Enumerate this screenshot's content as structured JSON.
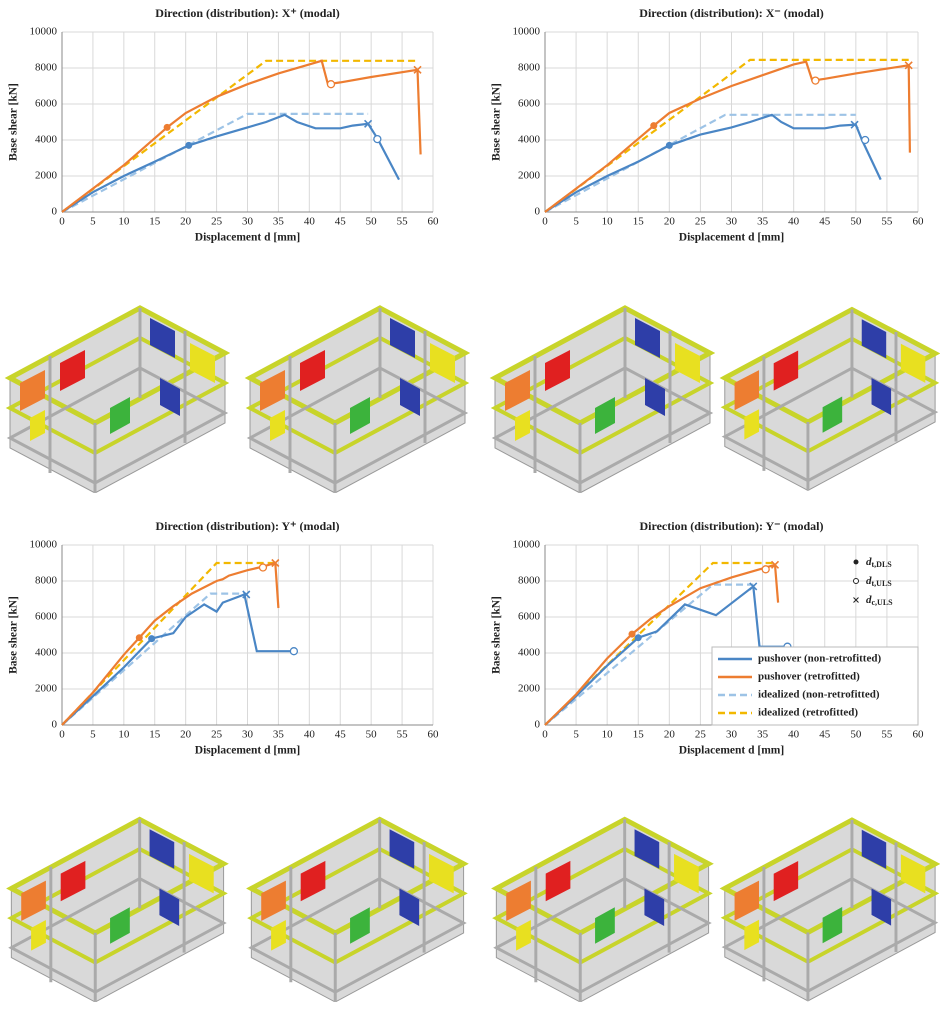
{
  "chart_data": [
    {
      "type": "line",
      "title": "Direction (distribution):  X⁺ (modal)",
      "x_label": "Displacement d [mm]",
      "y_label": "Base shear [kN]",
      "xlim": [
        0,
        60
      ],
      "xticks": [
        0,
        5,
        10,
        15,
        20,
        25,
        30,
        35,
        40,
        45,
        50,
        55,
        60
      ],
      "ylim": [
        0,
        10000
      ],
      "yticks": [
        0,
        2000,
        4000,
        6000,
        8000,
        10000
      ],
      "grid": true,
      "legend": false,
      "series": [
        {
          "name": "pushover (non-retrofitted)",
          "color": "#4a86c5",
          "dash": false,
          "x": [
            0,
            5,
            10,
            15,
            20.5,
            25,
            30,
            33,
            36,
            38,
            41,
            45,
            47,
            49.5,
            51,
            54.5
          ],
          "values": [
            0,
            1100,
            2000,
            2800,
            3700,
            4200,
            4700,
            5000,
            5400,
            5000,
            4650,
            4650,
            4800,
            4900,
            4100,
            1800
          ],
          "dls": [
            20.5,
            3700
          ],
          "uls": [
            51,
            4050
          ],
          "culs": [
            49.5,
            4900
          ]
        },
        {
          "name": "pushover (retrofitted)",
          "color": "#ed7d31",
          "dash": false,
          "x": [
            0,
            5,
            10,
            17,
            20,
            25,
            30,
            35,
            40,
            42,
            43,
            45,
            50,
            57.5,
            58
          ],
          "values": [
            0,
            1300,
            2600,
            4700,
            5500,
            6400,
            7100,
            7700,
            8200,
            8400,
            7100,
            7200,
            7500,
            7900,
            3200
          ],
          "dls": [
            17,
            4700
          ],
          "uls": [
            43.5,
            7100
          ],
          "culs": [
            57.5,
            7900
          ]
        },
        {
          "name": "idealized (non-retrofitted)",
          "color": "#9dc3e6",
          "dash": true,
          "x": [
            0,
            30,
            49.5
          ],
          "values": [
            0,
            5450,
            5450
          ]
        },
        {
          "name": "idealized (retrofitted)",
          "color": "#f2b800",
          "dash": true,
          "x": [
            0,
            33,
            57.5
          ],
          "values": [
            0,
            8400,
            8400
          ]
        }
      ]
    },
    {
      "type": "line",
      "title": "Direction (distribution):  X⁻ (modal)",
      "x_label": "Displacement d [mm]",
      "y_label": "Base shear [kN]",
      "xlim": [
        0,
        60
      ],
      "xticks": [
        0,
        5,
        10,
        15,
        20,
        25,
        30,
        35,
        40,
        45,
        50,
        55,
        60
      ],
      "ylim": [
        0,
        10000
      ],
      "yticks": [
        0,
        2000,
        4000,
        6000,
        8000,
        10000
      ],
      "grid": true,
      "legend": false,
      "series": [
        {
          "name": "pushover (non-retrofitted)",
          "color": "#4a86c5",
          "dash": false,
          "x": [
            0,
            5,
            10,
            15,
            20,
            25,
            30,
            33,
            36.5,
            38,
            40,
            45,
            47.5,
            50,
            51,
            54
          ],
          "values": [
            0,
            1100,
            2000,
            2800,
            3700,
            4300,
            4700,
            5000,
            5400,
            5000,
            4650,
            4650,
            4800,
            4850,
            4000,
            1800
          ],
          "dls": [
            20,
            3700
          ],
          "uls": [
            51.5,
            4000
          ],
          "culs": [
            49.8,
            4850
          ]
        },
        {
          "name": "pushover (retrofitted)",
          "color": "#ed7d31",
          "dash": false,
          "x": [
            0,
            5,
            10,
            17.5,
            20,
            25,
            30,
            35,
            40,
            42,
            43,
            45,
            50,
            58.5,
            58.7
          ],
          "values": [
            0,
            1300,
            2600,
            4800,
            5500,
            6300,
            7000,
            7600,
            8200,
            8350,
            7300,
            7400,
            7700,
            8150,
            3300
          ],
          "dls": [
            17.5,
            4800
          ],
          "uls": [
            43.5,
            7300
          ],
          "culs": [
            58.5,
            8150
          ]
        },
        {
          "name": "idealized (non-retrofitted)",
          "color": "#9dc3e6",
          "dash": true,
          "x": [
            0,
            29,
            50
          ],
          "values": [
            0,
            5400,
            5400
          ]
        },
        {
          "name": "idealized (retrofitted)",
          "color": "#f2b800",
          "dash": true,
          "x": [
            0,
            33,
            58.5
          ],
          "values": [
            0,
            8450,
            8450
          ]
        }
      ]
    },
    {
      "type": "line",
      "title": "Direction (distribution):  Y⁺ (modal)",
      "x_label": "Displacement d [mm]",
      "y_label": "Base shear [kN]",
      "xlim": [
        0,
        60
      ],
      "xticks": [
        0,
        5,
        10,
        15,
        20,
        25,
        30,
        35,
        40,
        45,
        50,
        55,
        60
      ],
      "ylim": [
        0,
        10000
      ],
      "yticks": [
        0,
        2000,
        4000,
        6000,
        8000,
        10000
      ],
      "grid": true,
      "legend": false,
      "series": [
        {
          "name": "pushover (non-retrofitted)",
          "color": "#4a86c5",
          "dash": false,
          "x": [
            0,
            5,
            10,
            14.5,
            18,
            20,
            23,
            25,
            26,
            29.5,
            31.5,
            37.5
          ],
          "values": [
            0,
            1600,
            3200,
            4800,
            5100,
            6000,
            6700,
            6300,
            6800,
            7250,
            4100,
            4100
          ],
          "dls": [
            14.5,
            4800
          ],
          "uls": [
            37.5,
            4100
          ],
          "culs": [
            29.8,
            7250
          ]
        },
        {
          "name": "pushover (retrofitted)",
          "color": "#ed7d31",
          "dash": false,
          "x": [
            0,
            5,
            10,
            12.5,
            15,
            18,
            21,
            25,
            26,
            27,
            30,
            32.5,
            34.5,
            35
          ],
          "values": [
            0,
            1800,
            3900,
            4850,
            5800,
            6600,
            7300,
            8000,
            8100,
            8300,
            8600,
            8800,
            9000,
            6500
          ],
          "dls": [
            12.5,
            4850
          ],
          "uls": [
            32.5,
            8750
          ],
          "culs": [
            34.5,
            9000
          ]
        },
        {
          "name": "idealized (non-retrofitted)",
          "color": "#9dc3e6",
          "dash": true,
          "x": [
            0,
            24,
            29.8
          ],
          "values": [
            0,
            7300,
            7300
          ]
        },
        {
          "name": "idealized (retrofitted)",
          "color": "#f2b800",
          "dash": true,
          "x": [
            0,
            25,
            34.5
          ],
          "values": [
            0,
            9000,
            9000
          ]
        }
      ]
    },
    {
      "type": "line",
      "title": "Direction (distribution):  Y⁻ (modal)",
      "x_label": "Displacement d [mm]",
      "y_label": "Base shear [kN]",
      "xlim": [
        0,
        60
      ],
      "xticks": [
        0,
        5,
        10,
        15,
        20,
        25,
        30,
        35,
        40,
        45,
        50,
        55,
        60
      ],
      "ylim": [
        0,
        10000
      ],
      "yticks": [
        0,
        2000,
        4000,
        6000,
        8000,
        10000
      ],
      "grid": true,
      "legend": true,
      "legend_position": "lower right",
      "marker_legend": [
        {
          "symbol": "d",
          "sub": "t,DLS"
        },
        {
          "symbol": "d",
          "sub": "t,ULS"
        },
        {
          "symbol": "d",
          "sub": "c,ULS"
        }
      ],
      "series": [
        {
          "name": "pushover (non-retrofitted)",
          "color": "#4a86c5",
          "dash": false,
          "x": [
            0,
            5,
            10,
            15,
            18,
            22.5,
            27.5,
            33.5,
            34.5,
            39
          ],
          "values": [
            0,
            1600,
            3300,
            4850,
            5200,
            6700,
            6100,
            7700,
            4350,
            4350
          ],
          "dls": [
            15,
            4850
          ],
          "uls": [
            39,
            4350
          ],
          "culs": [
            33.5,
            7700
          ]
        },
        {
          "name": "pushover (retrofitted)",
          "color": "#ed7d31",
          "dash": false,
          "x": [
            0,
            5,
            10,
            14,
            17,
            20,
            25,
            30,
            35,
            37,
            37.5
          ],
          "values": [
            0,
            1700,
            3700,
            5050,
            5900,
            6600,
            7600,
            8200,
            8700,
            8900,
            6800
          ],
          "dls": [
            14,
            5050
          ],
          "uls": [
            35.5,
            8650
          ],
          "culs": [
            37,
            8900
          ]
        },
        {
          "name": "idealized (non-retrofitted)",
          "color": "#9dc3e6",
          "dash": true,
          "x": [
            0,
            27,
            33.5
          ],
          "values": [
            0,
            7800,
            7800
          ]
        },
        {
          "name": "idealized (retrofitted)",
          "color": "#f2b800",
          "dash": true,
          "x": [
            0,
            27,
            37
          ],
          "values": [
            0,
            9000,
            9000
          ]
        }
      ]
    }
  ]
}
